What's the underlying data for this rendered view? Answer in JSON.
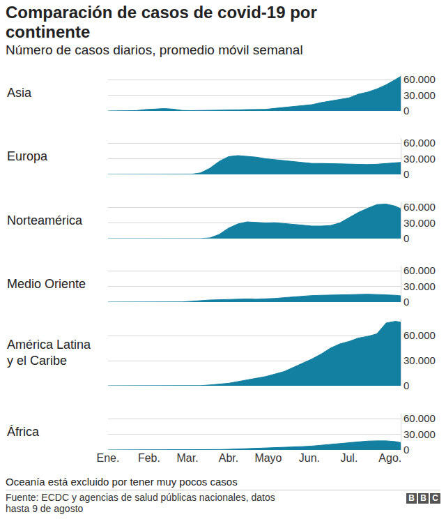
{
  "title": "Comparación de casos de covid-19 por continente",
  "subtitle": "Número de casos diarios, promedio móvil semanal",
  "note": "Oceanía está excluido por tener muy pocos casos",
  "source": "Fuente: ECDC y agencias de salud públicas nacionales, datos hasta 9 de agosto",
  "logo": "BBC",
  "chart_data": [
    {
      "type": "area",
      "title": "Asia",
      "color": "#1380a1",
      "grid": true,
      "tick_labels": "y",
      "x": [
        0,
        7,
        14,
        21,
        28,
        35,
        42,
        49,
        56,
        63,
        70,
        77,
        84,
        91,
        98,
        105,
        112,
        119,
        126,
        133,
        140,
        147,
        154,
        161,
        168,
        175,
        182,
        189,
        196,
        203,
        210,
        217,
        221
      ],
      "values": [
        0,
        0,
        100,
        600,
        2500,
        3500,
        4500,
        3500,
        1000,
        700,
        800,
        1000,
        1200,
        1500,
        2000,
        2500,
        2800,
        3000,
        5000,
        6500,
        8000,
        9500,
        12000,
        16000,
        19000,
        22000,
        25000,
        32000,
        36000,
        42000,
        50000,
        60000,
        66000
      ],
      "xlim": [
        0,
        221
      ],
      "xticks": [
        {
          "value": 0,
          "label": "Ene."
        },
        {
          "value": 31,
          "label": "Feb."
        },
        {
          "value": 60,
          "label": "Mar."
        },
        {
          "value": 91,
          "label": "Abr."
        },
        {
          "value": 121,
          "label": "Mayo"
        },
        {
          "value": 152,
          "label": "Jun."
        },
        {
          "value": 182,
          "label": "Jul."
        },
        {
          "value": 213,
          "label": "Ago."
        }
      ],
      "ylim": [
        0,
        70000
      ],
      "yticks": [
        0,
        {
          "value": 30000,
          "label": "30.000"
        },
        {
          "value": 60000,
          "label": "60.000"
        }
      ]
    },
    {
      "type": "area",
      "title": "Europa",
      "color": "#1380a1",
      "grid": true,
      "tick_labels": "y",
      "x": [
        0,
        7,
        14,
        21,
        28,
        35,
        42,
        49,
        56,
        63,
        70,
        77,
        84,
        91,
        98,
        105,
        112,
        119,
        126,
        133,
        140,
        147,
        154,
        161,
        168,
        175,
        182,
        189,
        196,
        203,
        210,
        217,
        221
      ],
      "values": [
        0,
        0,
        0,
        0,
        0,
        0,
        0,
        0,
        0,
        300,
        3000,
        12000,
        25000,
        34000,
        36000,
        35000,
        33000,
        30000,
        28000,
        27000,
        24000,
        22000,
        21000,
        21000,
        20500,
        20000,
        20000,
        19500,
        19000,
        19500,
        20500,
        22000,
        23000
      ],
      "xlim": [
        0,
        221
      ],
      "xticks": [
        {
          "value": 0,
          "label": "Ene."
        },
        {
          "value": 31,
          "label": "Feb."
        },
        {
          "value": 60,
          "label": "Mar."
        },
        {
          "value": 91,
          "label": "Abr."
        },
        {
          "value": 121,
          "label": "Mayo"
        },
        {
          "value": 152,
          "label": "Jun."
        },
        {
          "value": 182,
          "label": "Jul."
        },
        {
          "value": 213,
          "label": "Ago."
        }
      ],
      "ylim": [
        0,
        70000
      ],
      "yticks": [
        0,
        {
          "value": 30000,
          "label": "30.000"
        },
        {
          "value": 60000,
          "label": "60.000"
        }
      ]
    },
    {
      "type": "area",
      "title": "Norteamérica",
      "color": "#1380a1",
      "grid": true,
      "tick_labels": "y",
      "x": [
        0,
        7,
        14,
        21,
        28,
        35,
        42,
        49,
        56,
        63,
        70,
        77,
        84,
        91,
        98,
        105,
        112,
        119,
        126,
        133,
        140,
        147,
        154,
        161,
        168,
        175,
        182,
        189,
        196,
        203,
        210,
        217,
        221
      ],
      "values": [
        0,
        0,
        0,
        0,
        0,
        0,
        0,
        0,
        0,
        0,
        100,
        1500,
        8000,
        20000,
        28000,
        32000,
        31000,
        30000,
        30500,
        29000,
        27000,
        26000,
        24000,
        24000,
        25000,
        30000,
        40000,
        50000,
        58000,
        65000,
        66000,
        62000,
        57000
      ],
      "xlim": [
        0,
        221
      ],
      "xticks": [
        {
          "value": 0,
          "label": "Ene."
        },
        {
          "value": 31,
          "label": "Feb."
        },
        {
          "value": 60,
          "label": "Mar."
        },
        {
          "value": 91,
          "label": "Abr."
        },
        {
          "value": 121,
          "label": "Mayo"
        },
        {
          "value": 152,
          "label": "Jun."
        },
        {
          "value": 182,
          "label": "Jul."
        },
        {
          "value": 213,
          "label": "Ago."
        }
      ],
      "ylim": [
        0,
        70000
      ],
      "yticks": [
        0,
        {
          "value": 30000,
          "label": "30.000"
        },
        {
          "value": 60000,
          "label": "60.000"
        }
      ]
    },
    {
      "type": "area",
      "title": "Medio Oriente",
      "color": "#1380a1",
      "grid": true,
      "tick_labels": "y",
      "x": [
        0,
        7,
        14,
        21,
        28,
        35,
        42,
        49,
        56,
        63,
        70,
        77,
        84,
        91,
        98,
        105,
        112,
        119,
        126,
        133,
        140,
        147,
        154,
        161,
        168,
        175,
        182,
        189,
        196,
        203,
        210,
        217,
        221
      ],
      "values": [
        0,
        0,
        0,
        0,
        0,
        0,
        0,
        0,
        300,
        1500,
        3000,
        4000,
        4500,
        5000,
        5500,
        6000,
        5500,
        6000,
        7000,
        8500,
        10000,
        11500,
        12500,
        13000,
        13500,
        14000,
        14500,
        15000,
        15000,
        14500,
        14000,
        13000,
        12000
      ],
      "xlim": [
        0,
        221
      ],
      "xticks": [
        {
          "value": 0,
          "label": "Ene."
        },
        {
          "value": 31,
          "label": "Feb."
        },
        {
          "value": 60,
          "label": "Mar."
        },
        {
          "value": 91,
          "label": "Abr."
        },
        {
          "value": 121,
          "label": "Mayo"
        },
        {
          "value": 152,
          "label": "Jun."
        },
        {
          "value": 182,
          "label": "Jul."
        },
        {
          "value": 213,
          "label": "Ago."
        }
      ],
      "ylim": [
        0,
        70000
      ],
      "yticks": [
        0,
        {
          "value": 30000,
          "label": "30.000"
        },
        {
          "value": 60000,
          "label": "60.000"
        }
      ]
    },
    {
      "type": "area",
      "title": "América Latina y el Caribe",
      "color": "#1380a1",
      "grid": true,
      "tick_labels": "y",
      "x": [
        0,
        7,
        14,
        21,
        28,
        35,
        42,
        49,
        56,
        63,
        70,
        77,
        84,
        91,
        98,
        105,
        112,
        119,
        126,
        133,
        140,
        147,
        154,
        161,
        168,
        175,
        182,
        189,
        196,
        203,
        210,
        217,
        221
      ],
      "values": [
        0,
        0,
        0,
        0,
        0,
        0,
        0,
        0,
        0,
        0,
        200,
        1000,
        2000,
        3000,
        5000,
        7000,
        9000,
        11000,
        14000,
        17000,
        22000,
        27000,
        32000,
        38000,
        45000,
        50000,
        53000,
        57000,
        59000,
        62000,
        75000,
        77000,
        76000
      ],
      "xlim": [
        0,
        221
      ],
      "xticks": [
        {
          "value": 0,
          "label": "Ene."
        },
        {
          "value": 31,
          "label": "Feb."
        },
        {
          "value": 60,
          "label": "Mar."
        },
        {
          "value": 91,
          "label": "Abr."
        },
        {
          "value": 121,
          "label": "Mayo"
        },
        {
          "value": 152,
          "label": "Jun."
        },
        {
          "value": 182,
          "label": "Jul."
        },
        {
          "value": 213,
          "label": "Ago."
        }
      ],
      "ylim": [
        0,
        80000
      ],
      "yticks": [
        0,
        {
          "value": 30000,
          "label": "30.000"
        },
        {
          "value": 60000,
          "label": "60.000"
        }
      ]
    },
    {
      "type": "area",
      "title": "África",
      "color": "#1380a1",
      "grid": true,
      "x": [
        0,
        7,
        14,
        21,
        28,
        35,
        42,
        49,
        56,
        63,
        70,
        77,
        84,
        91,
        98,
        105,
        112,
        119,
        126,
        133,
        140,
        147,
        154,
        161,
        168,
        175,
        182,
        189,
        196,
        203,
        210,
        217,
        221
      ],
      "values": [
        0,
        0,
        0,
        0,
        0,
        0,
        0,
        0,
        0,
        0,
        0,
        300,
        800,
        1200,
        1800,
        2500,
        3000,
        3500,
        4000,
        4500,
        5500,
        6500,
        7500,
        9000,
        10500,
        12000,
        14000,
        16000,
        17000,
        17500,
        17500,
        16000,
        14000
      ],
      "xlim": [
        0,
        221
      ],
      "xticks": [
        {
          "value": 0,
          "label": "Ene."
        },
        {
          "value": 31,
          "label": "Feb."
        },
        {
          "value": 60,
          "label": "Mar."
        },
        {
          "value": 91,
          "label": "Abr."
        },
        {
          "value": 121,
          "label": "Mayo"
        },
        {
          "value": 152,
          "label": "Jun."
        },
        {
          "value": 182,
          "label": "Jul."
        },
        {
          "value": 213,
          "label": "Ago."
        }
      ],
      "ylim": [
        0,
        70000
      ],
      "yticks": [
        0,
        {
          "value": 30000,
          "label": "30.000"
        },
        {
          "value": 60000,
          "label": "60.000"
        }
      ]
    }
  ]
}
